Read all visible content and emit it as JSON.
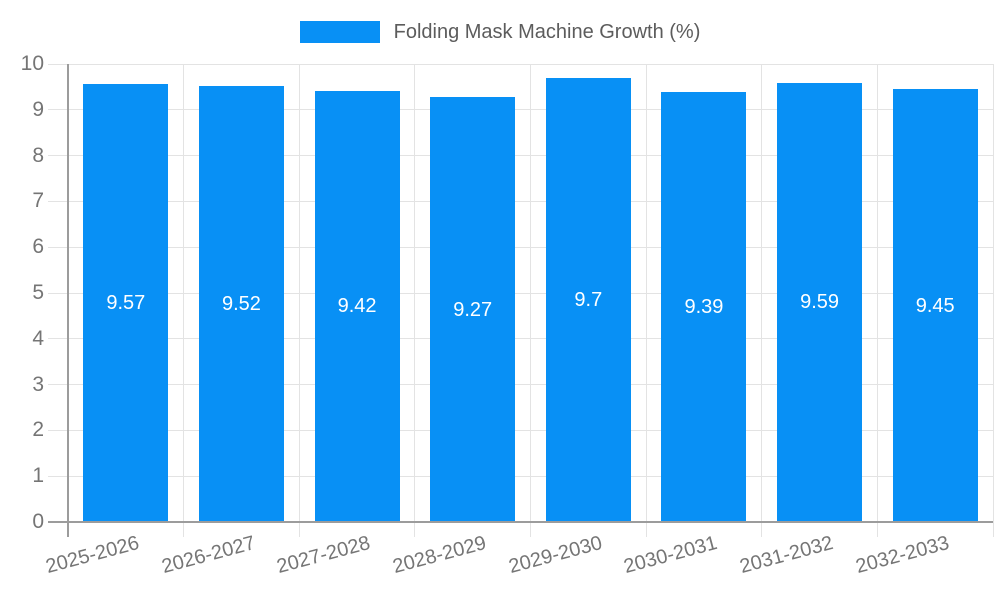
{
  "chart_data": {
    "type": "bar",
    "title": "Folding Mask Machine Growth (%)",
    "categories": [
      "2025-2026",
      "2026-2027",
      "2027-2028",
      "2028-2029",
      "2029-2030",
      "2030-2031",
      "2031-2032",
      "2032-2033"
    ],
    "series": [
      {
        "name": "Folding Mask Machine Growth (%)",
        "values": [
          9.57,
          9.52,
          9.42,
          9.27,
          9.7,
          9.39,
          9.59,
          9.45
        ]
      }
    ],
    "xlabel": "",
    "ylabel": "",
    "ylim": [
      0,
      10
    ],
    "ytick_step": 1,
    "ytick_labels": [
      "0",
      "1",
      "2",
      "3",
      "4",
      "5",
      "6",
      "7",
      "8",
      "9",
      "10"
    ],
    "grid": true,
    "legend_position": "top",
    "bar_value_labels_inside": true,
    "colors": {
      "bar": "#0890f5",
      "bar_value_text": "#ffffff",
      "axis_line": "#9c9c9c",
      "grid_line": "#e3e3e3",
      "tick_text": "#757575",
      "legend_text": "#5c5c5c",
      "background": "#ffffff"
    }
  },
  "legend": {
    "label": "Folding Mask Machine Growth (%)"
  }
}
